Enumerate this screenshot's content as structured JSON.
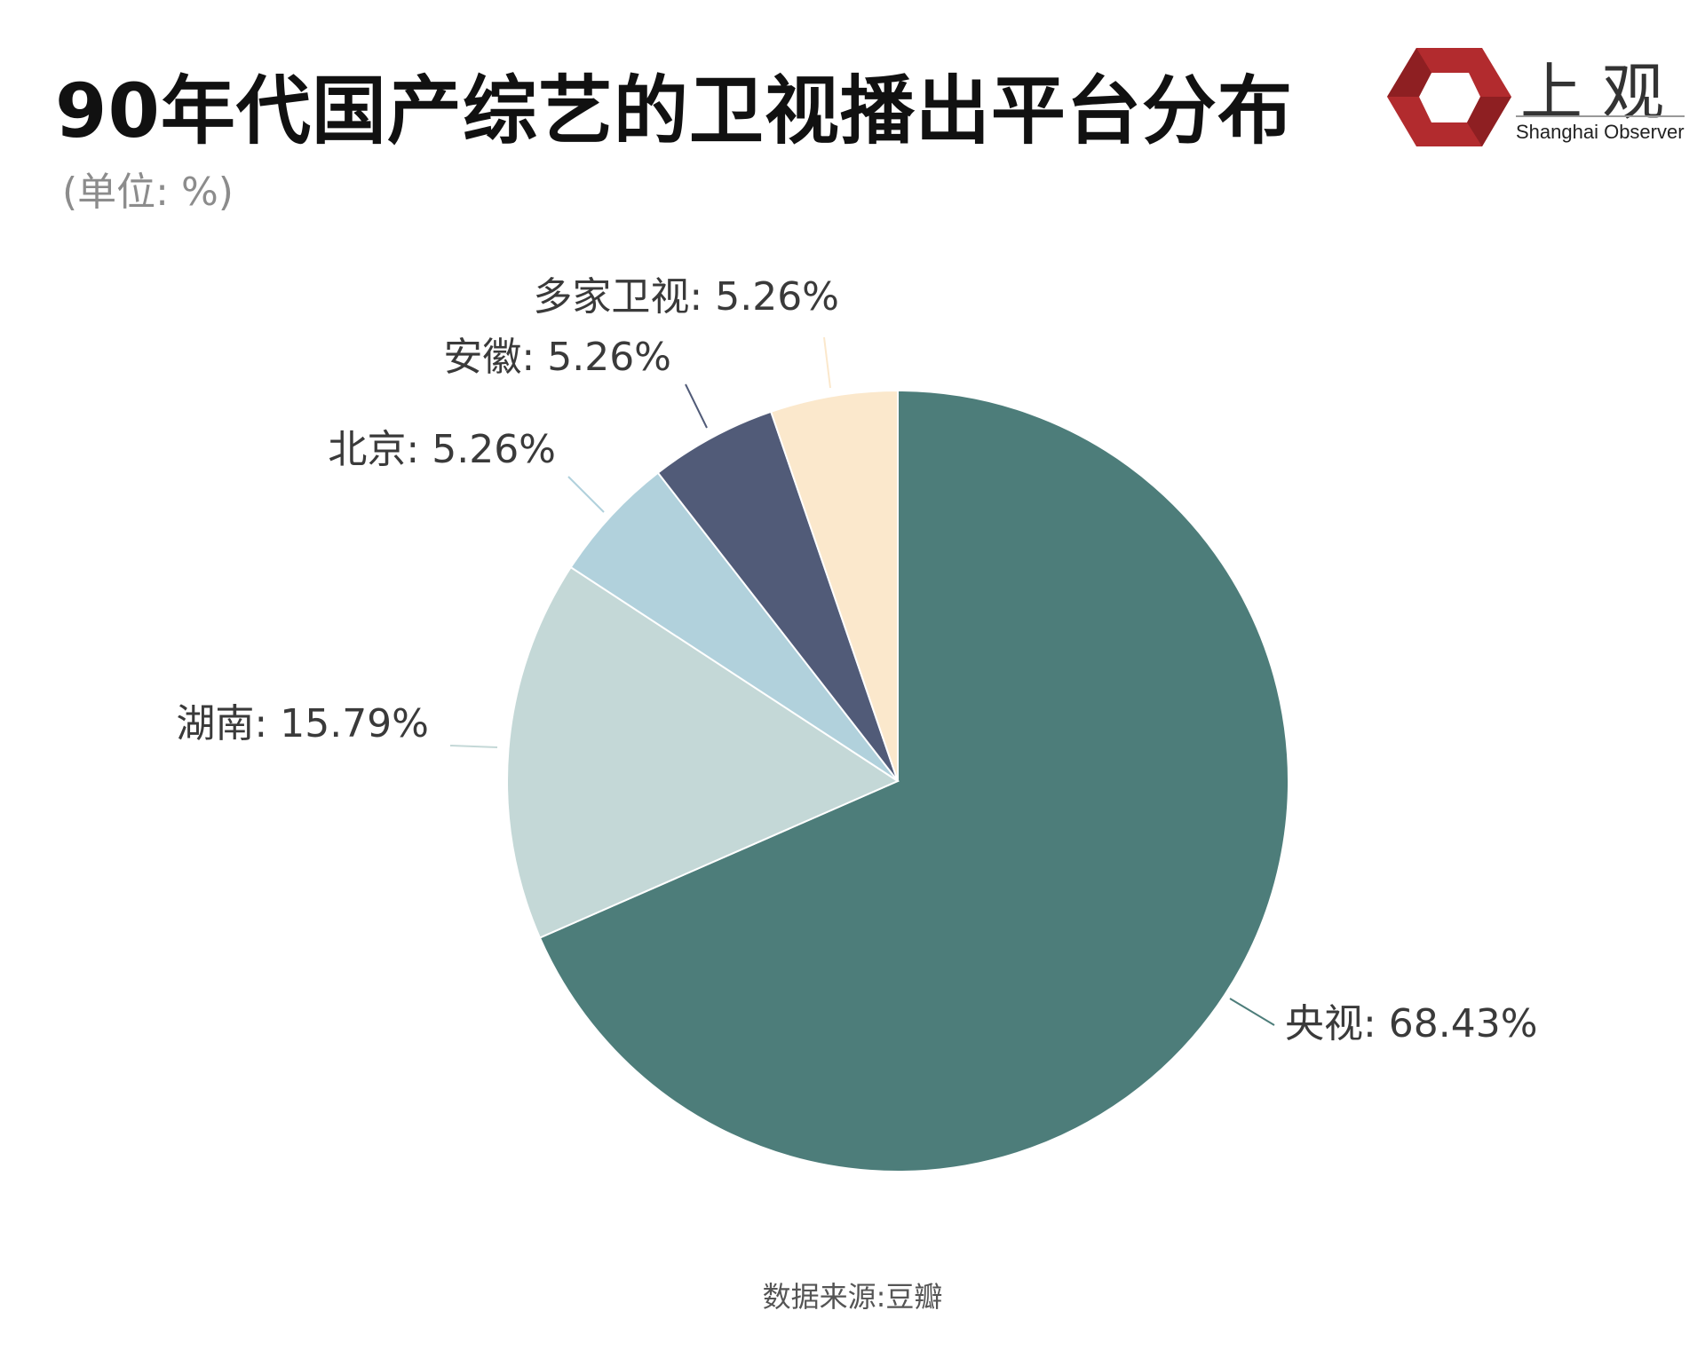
{
  "header": {
    "title": "90年代国产综艺的卫视播出平台分布",
    "unit": "(单位: %)"
  },
  "logo": {
    "name_cn": "上观",
    "name_en": "Shanghai Observer",
    "colors": {
      "red": "#b22b2e",
      "white": "#ffffff"
    }
  },
  "chart_data": {
    "type": "pie",
    "title": "90年代国产综艺的卫视播出平台分布",
    "unit": "%",
    "start_angle_deg": 0,
    "direction": "clockwise",
    "slices": [
      {
        "name": "央视",
        "value": 68.43,
        "label": "央视: 68.43%",
        "color": "#4d7d7a"
      },
      {
        "name": "湖南",
        "value": 15.79,
        "label": "湖南: 15.79%",
        "color": "#c4d8d7"
      },
      {
        "name": "北京",
        "value": 5.26,
        "label": "北京: 5.26%",
        "color": "#b1d1dc"
      },
      {
        "name": "安徽",
        "value": 5.26,
        "label": "安徽: 5.26%",
        "color": "#515b78"
      },
      {
        "name": "多家卫视",
        "value": 5.26,
        "label": "多家卫视: 5.26%",
        "color": "#fbe8cc"
      }
    ]
  },
  "footer": {
    "source": "数据来源:豆瓣"
  }
}
